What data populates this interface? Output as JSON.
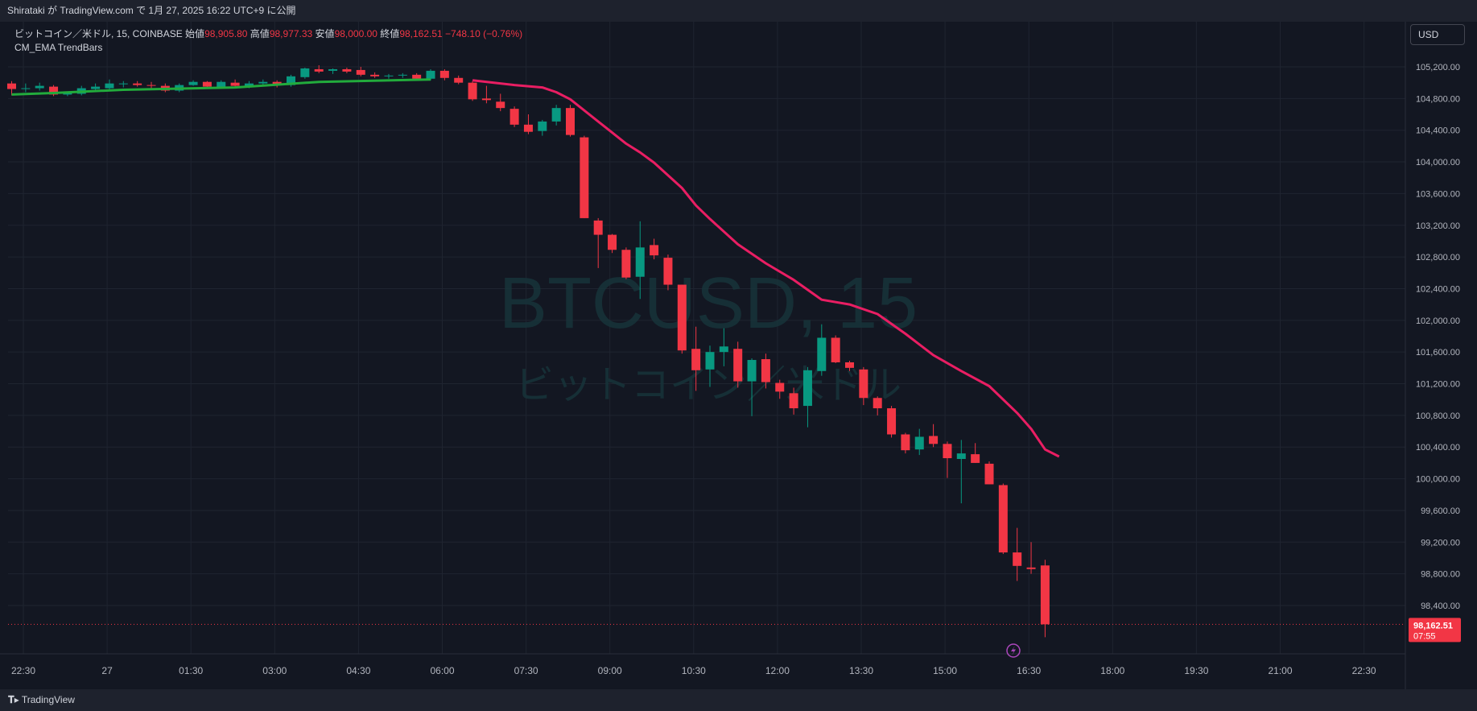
{
  "header": {
    "publish_line": "Shirataki が TradingView.com で 1月 27, 2025 16:22 UTC+9 に公開"
  },
  "legend": {
    "symbol": "ビットコイン／米ドル, 15, COINBASE",
    "open_label": "始値",
    "open_value": "98,905.80",
    "high_label": "高値",
    "high_value": "98,977.33",
    "low_label": "安値",
    "low_value": "98,000.00",
    "close_label": "終値",
    "close_value": "98,162.51",
    "change": "−748.10 (−0.76%)",
    "indicator": "CM_EMA TrendBars"
  },
  "currency_button": "USD",
  "watermark": {
    "ticker": "BTCUSD, 15",
    "name": "ビットコイン／米ドル"
  },
  "price_tag": {
    "price": "98,162.51",
    "countdown": "07:55"
  },
  "footer": {
    "brand": "TradingView"
  },
  "colors": {
    "up": "#089981",
    "down": "#f23645",
    "ema_up": "#22ab3c",
    "ema_down": "#e91e63",
    "background": "#131722"
  },
  "chart_data": {
    "type": "candlestick",
    "interval": "15",
    "y_axis": {
      "ticks": [
        "105,200.00",
        "104,800.00",
        "104,400.00",
        "104,000.00",
        "103,600.00",
        "103,200.00",
        "102,800.00",
        "102,400.00",
        "102,000.00",
        "101,600.00",
        "101,200.00",
        "100,800.00",
        "100,400.00",
        "100,000.00",
        "99,600.00",
        "99,200.00",
        "98,800.00",
        "98,400.00"
      ],
      "tick_values": [
        105200,
        104800,
        104400,
        104000,
        103600,
        103200,
        102800,
        102400,
        102000,
        101600,
        101200,
        100800,
        100400,
        100000,
        99600,
        99200,
        98800,
        98400
      ]
    },
    "x_axis": {
      "ticks": [
        "22:30",
        "27",
        "01:30",
        "03:00",
        "04:30",
        "06:00",
        "07:30",
        "09:00",
        "10:30",
        "12:00",
        "13:30",
        "15:00",
        "16:30",
        "18:00",
        "19:30",
        "21:00",
        "22:30"
      ]
    },
    "candles": [
      {
        "o": 104990,
        "h": 105020,
        "l": 104840,
        "c": 104920
      },
      {
        "o": 104920,
        "h": 104990,
        "l": 104880,
        "c": 104930
      },
      {
        "o": 104930,
        "h": 105000,
        "l": 104900,
        "c": 104960
      },
      {
        "o": 104950,
        "h": 104970,
        "l": 104830,
        "c": 104850
      },
      {
        "o": 104850,
        "h": 104890,
        "l": 104830,
        "c": 104870
      },
      {
        "o": 104860,
        "h": 104960,
        "l": 104840,
        "c": 104930
      },
      {
        "o": 104920,
        "h": 104990,
        "l": 104900,
        "c": 104950
      },
      {
        "o": 104930,
        "h": 105040,
        "l": 104900,
        "c": 104990
      },
      {
        "o": 104980,
        "h": 105020,
        "l": 104940,
        "c": 104990
      },
      {
        "o": 104990,
        "h": 105020,
        "l": 104950,
        "c": 104970
      },
      {
        "o": 104970,
        "h": 105010,
        "l": 104910,
        "c": 104960
      },
      {
        "o": 104960,
        "h": 104990,
        "l": 104880,
        "c": 104900
      },
      {
        "o": 104900,
        "h": 104990,
        "l": 104880,
        "c": 104970
      },
      {
        "o": 104970,
        "h": 105030,
        "l": 104960,
        "c": 105010
      },
      {
        "o": 105010,
        "h": 105020,
        "l": 104920,
        "c": 104950
      },
      {
        "o": 104940,
        "h": 105030,
        "l": 104930,
        "c": 105010
      },
      {
        "o": 105000,
        "h": 105040,
        "l": 104940,
        "c": 104960
      },
      {
        "o": 104960,
        "h": 105020,
        "l": 104930,
        "c": 104990
      },
      {
        "o": 104990,
        "h": 105040,
        "l": 104960,
        "c": 105010
      },
      {
        "o": 105010,
        "h": 105030,
        "l": 104940,
        "c": 104980
      },
      {
        "o": 104970,
        "h": 105100,
        "l": 104950,
        "c": 105080
      },
      {
        "o": 105070,
        "h": 105190,
        "l": 105050,
        "c": 105180
      },
      {
        "o": 105170,
        "h": 105220,
        "l": 105120,
        "c": 105140
      },
      {
        "o": 105150,
        "h": 105180,
        "l": 105110,
        "c": 105170
      },
      {
        "o": 105170,
        "h": 105190,
        "l": 105120,
        "c": 105140
      },
      {
        "o": 105160,
        "h": 105200,
        "l": 105080,
        "c": 105100
      },
      {
        "o": 105100,
        "h": 105130,
        "l": 105060,
        "c": 105080
      },
      {
        "o": 105080,
        "h": 105110,
        "l": 105050,
        "c": 105090
      },
      {
        "o": 105090,
        "h": 105120,
        "l": 105060,
        "c": 105100
      },
      {
        "o": 105100,
        "h": 105120,
        "l": 105030,
        "c": 105050
      },
      {
        "o": 105050,
        "h": 105170,
        "l": 105030,
        "c": 105150
      },
      {
        "o": 105150,
        "h": 105170,
        "l": 105030,
        "c": 105060
      },
      {
        "o": 105060,
        "h": 105090,
        "l": 104980,
        "c": 105000
      },
      {
        "o": 105000,
        "h": 105020,
        "l": 104770,
        "c": 104790
      },
      {
        "o": 104800,
        "h": 104960,
        "l": 104740,
        "c": 104780
      },
      {
        "o": 104760,
        "h": 104860,
        "l": 104640,
        "c": 104680
      },
      {
        "o": 104670,
        "h": 104700,
        "l": 104440,
        "c": 104470
      },
      {
        "o": 104470,
        "h": 104600,
        "l": 104350,
        "c": 104380
      },
      {
        "o": 104390,
        "h": 104530,
        "l": 104330,
        "c": 104510
      },
      {
        "o": 104510,
        "h": 104720,
        "l": 104460,
        "c": 104680
      },
      {
        "o": 104680,
        "h": 104720,
        "l": 104320,
        "c": 104340
      },
      {
        "o": 104310,
        "h": 104330,
        "l": 103290,
        "c": 103290
      },
      {
        "o": 103260,
        "h": 103290,
        "l": 102660,
        "c": 103080
      },
      {
        "o": 103080,
        "h": 103090,
        "l": 102850,
        "c": 102890
      },
      {
        "o": 102890,
        "h": 102920,
        "l": 102520,
        "c": 102540
      },
      {
        "o": 102550,
        "h": 103250,
        "l": 102270,
        "c": 102920
      },
      {
        "o": 102950,
        "h": 103030,
        "l": 102770,
        "c": 102820
      },
      {
        "o": 102790,
        "h": 102830,
        "l": 102380,
        "c": 102450
      },
      {
        "o": 102450,
        "h": 102450,
        "l": 101580,
        "c": 101620
      },
      {
        "o": 101640,
        "h": 101920,
        "l": 101110,
        "c": 101370
      },
      {
        "o": 101380,
        "h": 101680,
        "l": 101160,
        "c": 101600
      },
      {
        "o": 101600,
        "h": 101900,
        "l": 101420,
        "c": 101670
      },
      {
        "o": 101640,
        "h": 101730,
        "l": 101150,
        "c": 101230
      },
      {
        "o": 101230,
        "h": 101520,
        "l": 100790,
        "c": 101500
      },
      {
        "o": 101510,
        "h": 101580,
        "l": 101140,
        "c": 101220
      },
      {
        "o": 101210,
        "h": 101250,
        "l": 101010,
        "c": 101100
      },
      {
        "o": 101080,
        "h": 101150,
        "l": 100810,
        "c": 100890
      },
      {
        "o": 100920,
        "h": 101410,
        "l": 100650,
        "c": 101370
      },
      {
        "o": 101360,
        "h": 101950,
        "l": 101300,
        "c": 101780
      },
      {
        "o": 101780,
        "h": 101810,
        "l": 101460,
        "c": 101470
      },
      {
        "o": 101470,
        "h": 101490,
        "l": 101360,
        "c": 101400
      },
      {
        "o": 101380,
        "h": 101410,
        "l": 100930,
        "c": 101020
      },
      {
        "o": 101020,
        "h": 101040,
        "l": 100800,
        "c": 100890
      },
      {
        "o": 100890,
        "h": 100920,
        "l": 100520,
        "c": 100560
      },
      {
        "o": 100560,
        "h": 100580,
        "l": 100320,
        "c": 100360
      },
      {
        "o": 100370,
        "h": 100630,
        "l": 100300,
        "c": 100530
      },
      {
        "o": 100540,
        "h": 100690,
        "l": 100400,
        "c": 100440
      },
      {
        "o": 100440,
        "h": 100470,
        "l": 100010,
        "c": 100260
      },
      {
        "o": 100250,
        "h": 100490,
        "l": 99690,
        "c": 100320
      },
      {
        "o": 100310,
        "h": 100450,
        "l": 100200,
        "c": 100200
      },
      {
        "o": 100190,
        "h": 100220,
        "l": 99930,
        "c": 99930
      },
      {
        "o": 99920,
        "h": 99940,
        "l": 99050,
        "c": 99070
      },
      {
        "o": 99070,
        "h": 99380,
        "l": 98710,
        "c": 98900
      },
      {
        "o": 98880,
        "h": 99200,
        "l": 98800,
        "c": 98860
      },
      {
        "o": 98905.8,
        "h": 98977.33,
        "l": 98000,
        "c": 98162.51
      }
    ],
    "ema": [
      [
        0,
        104850
      ],
      [
        3,
        104870
      ],
      [
        8,
        104910
      ],
      [
        16,
        104940
      ],
      [
        22,
        105010
      ],
      [
        30,
        105040
      ],
      [
        33,
        105030
      ],
      [
        36,
        104970
      ],
      [
        38,
        104940
      ],
      [
        39,
        104880
      ],
      [
        40,
        104790
      ],
      [
        42,
        104510
      ],
      [
        44,
        104230
      ],
      [
        45,
        104120
      ],
      [
        46,
        103990
      ],
      [
        48,
        103670
      ],
      [
        49,
        103450
      ],
      [
        50,
        103280
      ],
      [
        52,
        102960
      ],
      [
        54,
        102720
      ],
      [
        56,
        102510
      ],
      [
        58,
        102260
      ],
      [
        60,
        102200
      ],
      [
        62,
        102080
      ],
      [
        64,
        101830
      ],
      [
        66,
        101560
      ],
      [
        68,
        101360
      ],
      [
        70,
        101170
      ],
      [
        72,
        100830
      ],
      [
        73,
        100630
      ],
      [
        74,
        100370
      ],
      [
        75,
        100280
      ]
    ],
    "last_price": 98162.51
  }
}
